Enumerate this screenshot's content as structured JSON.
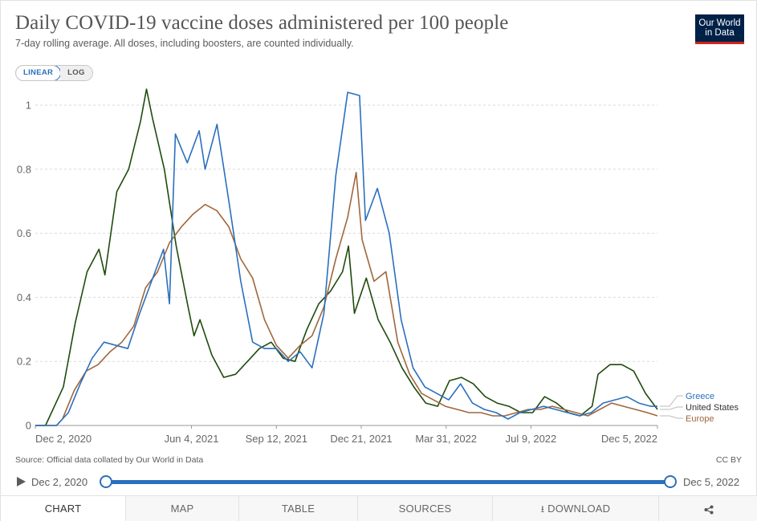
{
  "header": {
    "title": "Daily COVID-19 vaccine doses administered per 100 people",
    "subtitle": "7-day rolling average. All doses, including boosters, are counted individually.",
    "logo_line1": "Our World",
    "logo_line2": "in Data"
  },
  "scale_toggle": {
    "linear": "LINEAR",
    "log": "LOG",
    "selected": "LINEAR"
  },
  "colors": {
    "Greece": "#2b6fbe",
    "United States": "#1e4b0e",
    "Europe": "#a0673c",
    "accent": "#2b6fbe"
  },
  "chart_data": {
    "type": "line",
    "title": "Daily COVID-19 vaccine doses administered per 100 people",
    "subtitle": "7-day rolling average. All doses, including boosters, are counted individually.",
    "xlabel": "",
    "ylabel": "",
    "x_ticks": [
      "Dec 2, 2020",
      "Jun 4, 2021",
      "Sep 12, 2021",
      "Dec 21, 2021",
      "Mar 31, 2022",
      "Jul 9, 2022",
      "Dec 5, 2022"
    ],
    "x_range": [
      "2020-12-02",
      "2022-12-05"
    ],
    "y_ticks": [
      "0",
      "0.2",
      "0.4",
      "0.6",
      "0.8",
      "1"
    ],
    "ylim": [
      0,
      1.05
    ],
    "grid": "horizontal-dashed",
    "legend": "right-inline",
    "series": [
      {
        "name": "Greece",
        "points": [
          [
            "2020-12-02",
            0
          ],
          [
            "2020-12-27",
            0
          ],
          [
            "2021-01-10",
            0.04
          ],
          [
            "2021-01-24",
            0.13
          ],
          [
            "2021-02-07",
            0.21
          ],
          [
            "2021-02-21",
            0.26
          ],
          [
            "2021-03-07",
            0.25
          ],
          [
            "2021-03-21",
            0.24
          ],
          [
            "2021-04-04",
            0.35
          ],
          [
            "2021-04-18",
            0.45
          ],
          [
            "2021-05-02",
            0.55
          ],
          [
            "2021-05-09",
            0.38
          ],
          [
            "2021-05-16",
            0.91
          ],
          [
            "2021-05-30",
            0.82
          ],
          [
            "2021-06-13",
            0.92
          ],
          [
            "2021-06-20",
            0.8
          ],
          [
            "2021-07-04",
            0.94
          ],
          [
            "2021-07-18",
            0.7
          ],
          [
            "2021-08-01",
            0.45
          ],
          [
            "2021-08-15",
            0.26
          ],
          [
            "2021-08-29",
            0.24
          ],
          [
            "2021-09-12",
            0.24
          ],
          [
            "2021-09-26",
            0.2
          ],
          [
            "2021-10-10",
            0.23
          ],
          [
            "2021-10-24",
            0.18
          ],
          [
            "2021-11-07",
            0.35
          ],
          [
            "2021-11-21",
            0.78
          ],
          [
            "2021-12-05",
            1.04
          ],
          [
            "2021-12-19",
            1.03
          ],
          [
            "2021-12-26",
            0.64
          ],
          [
            "2022-01-09",
            0.74
          ],
          [
            "2022-01-23",
            0.6
          ],
          [
            "2022-02-06",
            0.33
          ],
          [
            "2022-02-20",
            0.18
          ],
          [
            "2022-03-06",
            0.12
          ],
          [
            "2022-03-20",
            0.1
          ],
          [
            "2022-04-03",
            0.08
          ],
          [
            "2022-04-17",
            0.13
          ],
          [
            "2022-05-01",
            0.07
          ],
          [
            "2022-05-15",
            0.05
          ],
          [
            "2022-05-29",
            0.04
          ],
          [
            "2022-06-12",
            0.02
          ],
          [
            "2022-06-26",
            0.04
          ],
          [
            "2022-07-10",
            0.05
          ],
          [
            "2022-07-24",
            0.06
          ],
          [
            "2022-08-07",
            0.05
          ],
          [
            "2022-08-21",
            0.04
          ],
          [
            "2022-09-04",
            0.03
          ],
          [
            "2022-09-18",
            0.04
          ],
          [
            "2022-10-02",
            0.07
          ],
          [
            "2022-10-16",
            0.08
          ],
          [
            "2022-10-30",
            0.09
          ],
          [
            "2022-11-13",
            0.07
          ],
          [
            "2022-11-27",
            0.06
          ],
          [
            "2022-12-05",
            0.06
          ]
        ]
      },
      {
        "name": "United States",
        "points": [
          [
            "2020-12-02",
            0
          ],
          [
            "2020-12-14",
            0
          ],
          [
            "2020-12-21",
            0.04
          ],
          [
            "2021-01-04",
            0.12
          ],
          [
            "2021-01-18",
            0.32
          ],
          [
            "2021-02-01",
            0.48
          ],
          [
            "2021-02-15",
            0.55
          ],
          [
            "2021-02-22",
            0.47
          ],
          [
            "2021-03-08",
            0.73
          ],
          [
            "2021-03-22",
            0.8
          ],
          [
            "2021-04-05",
            0.95
          ],
          [
            "2021-04-12",
            1.05
          ],
          [
            "2021-04-19",
            0.96
          ],
          [
            "2021-05-03",
            0.8
          ],
          [
            "2021-05-17",
            0.56
          ],
          [
            "2021-05-31",
            0.37
          ],
          [
            "2021-06-07",
            0.28
          ],
          [
            "2021-06-14",
            0.33
          ],
          [
            "2021-06-28",
            0.22
          ],
          [
            "2021-07-12",
            0.15
          ],
          [
            "2021-07-26",
            0.16
          ],
          [
            "2021-08-09",
            0.2
          ],
          [
            "2021-08-23",
            0.24
          ],
          [
            "2021-09-06",
            0.26
          ],
          [
            "2021-09-20",
            0.21
          ],
          [
            "2021-10-04",
            0.2
          ],
          [
            "2021-10-18",
            0.3
          ],
          [
            "2021-11-01",
            0.38
          ],
          [
            "2021-11-15",
            0.42
          ],
          [
            "2021-11-29",
            0.48
          ],
          [
            "2021-12-06",
            0.56
          ],
          [
            "2021-12-13",
            0.35
          ],
          [
            "2021-12-27",
            0.46
          ],
          [
            "2022-01-10",
            0.33
          ],
          [
            "2022-01-24",
            0.26
          ],
          [
            "2022-02-07",
            0.18
          ],
          [
            "2022-02-21",
            0.12
          ],
          [
            "2022-03-07",
            0.07
          ],
          [
            "2022-03-21",
            0.06
          ],
          [
            "2022-04-04",
            0.14
          ],
          [
            "2022-04-18",
            0.15
          ],
          [
            "2022-05-02",
            0.13
          ],
          [
            "2022-05-16",
            0.09
          ],
          [
            "2022-05-30",
            0.07
          ],
          [
            "2022-06-13",
            0.06
          ],
          [
            "2022-06-27",
            0.04
          ],
          [
            "2022-07-11",
            0.04
          ],
          [
            "2022-07-25",
            0.09
          ],
          [
            "2022-08-08",
            0.07
          ],
          [
            "2022-08-22",
            0.04
          ],
          [
            "2022-09-05",
            0.03
          ],
          [
            "2022-09-19",
            0.06
          ],
          [
            "2022-09-26",
            0.16
          ],
          [
            "2022-10-10",
            0.19
          ],
          [
            "2022-10-24",
            0.19
          ],
          [
            "2022-11-07",
            0.17
          ],
          [
            "2022-11-21",
            0.1
          ],
          [
            "2022-12-05",
            0.05
          ]
        ]
      },
      {
        "name": "Europe",
        "points": [
          [
            "2020-12-02",
            0
          ],
          [
            "2020-12-27",
            0
          ],
          [
            "2021-01-03",
            0.02
          ],
          [
            "2021-01-17",
            0.11
          ],
          [
            "2021-01-31",
            0.17
          ],
          [
            "2021-02-14",
            0.19
          ],
          [
            "2021-02-28",
            0.23
          ],
          [
            "2021-03-14",
            0.26
          ],
          [
            "2021-03-28",
            0.31
          ],
          [
            "2021-04-11",
            0.43
          ],
          [
            "2021-04-25",
            0.48
          ],
          [
            "2021-05-09",
            0.57
          ],
          [
            "2021-05-23",
            0.62
          ],
          [
            "2021-06-06",
            0.66
          ],
          [
            "2021-06-20",
            0.69
          ],
          [
            "2021-07-04",
            0.67
          ],
          [
            "2021-07-18",
            0.62
          ],
          [
            "2021-08-01",
            0.52
          ],
          [
            "2021-08-15",
            0.46
          ],
          [
            "2021-08-29",
            0.33
          ],
          [
            "2021-09-12",
            0.25
          ],
          [
            "2021-09-26",
            0.21
          ],
          [
            "2021-10-10",
            0.25
          ],
          [
            "2021-10-24",
            0.28
          ],
          [
            "2021-11-07",
            0.37
          ],
          [
            "2021-11-21",
            0.52
          ],
          [
            "2021-12-05",
            0.65
          ],
          [
            "2021-12-15",
            0.79
          ],
          [
            "2021-12-22",
            0.58
          ],
          [
            "2022-01-05",
            0.45
          ],
          [
            "2022-01-19",
            0.48
          ],
          [
            "2022-02-02",
            0.26
          ],
          [
            "2022-02-16",
            0.16
          ],
          [
            "2022-03-02",
            0.1
          ],
          [
            "2022-03-16",
            0.08
          ],
          [
            "2022-03-30",
            0.06
          ],
          [
            "2022-04-13",
            0.05
          ],
          [
            "2022-04-27",
            0.04
          ],
          [
            "2022-05-11",
            0.04
          ],
          [
            "2022-05-25",
            0.03
          ],
          [
            "2022-06-08",
            0.03
          ],
          [
            "2022-06-22",
            0.04
          ],
          [
            "2022-07-06",
            0.05
          ],
          [
            "2022-07-20",
            0.05
          ],
          [
            "2022-08-03",
            0.06
          ],
          [
            "2022-08-17",
            0.05
          ],
          [
            "2022-08-31",
            0.04
          ],
          [
            "2022-09-14",
            0.03
          ],
          [
            "2022-09-28",
            0.05
          ],
          [
            "2022-10-12",
            0.07
          ],
          [
            "2022-10-26",
            0.06
          ],
          [
            "2022-11-09",
            0.05
          ],
          [
            "2022-11-23",
            0.04
          ],
          [
            "2022-12-05",
            0.03
          ]
        ]
      }
    ]
  },
  "footer": {
    "source": "Source: Official data collated by Our World in Data",
    "license": "CC BY"
  },
  "timeline": {
    "start_label": "Dec 2, 2020",
    "end_label": "Dec 5, 2022",
    "start_fraction": 0,
    "end_fraction": 1
  },
  "tabs": [
    {
      "label": "CHART",
      "active": true
    },
    {
      "label": "MAP",
      "active": false
    },
    {
      "label": "TABLE",
      "active": false
    },
    {
      "label": "SOURCES",
      "active": false
    },
    {
      "label": "DOWNLOAD",
      "active": false
    },
    {
      "label": "",
      "active": false
    }
  ]
}
